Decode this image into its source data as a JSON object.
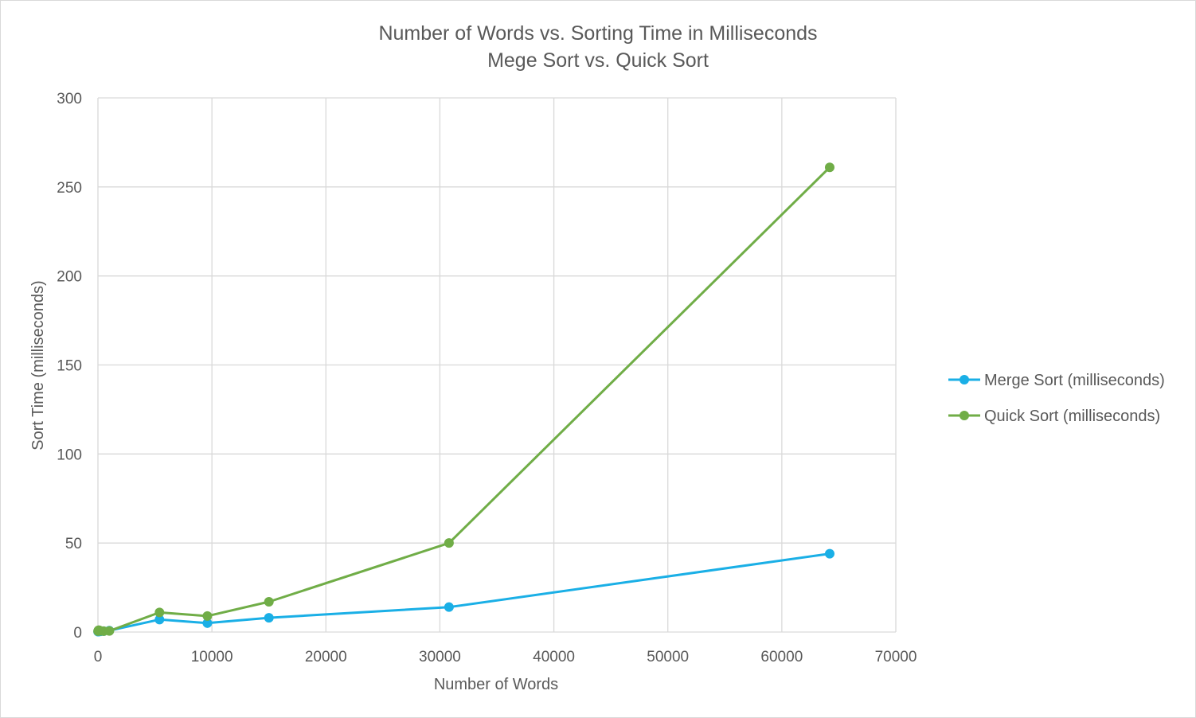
{
  "chart_data": {
    "type": "line",
    "title": "Number of Words vs. Sorting Time in Milliseconds",
    "subtitle": "Mege Sort vs. Quick Sort",
    "xlabel": "Number of Words",
    "ylabel": "Sort Time (milliseconds)",
    "xlim": [
      0,
      70000
    ],
    "ylim": [
      0,
      300
    ],
    "x_ticks": [
      0,
      10000,
      20000,
      30000,
      40000,
      50000,
      60000,
      70000
    ],
    "y_ticks": [
      0,
      50,
      100,
      150,
      200,
      250,
      300
    ],
    "grid": true,
    "legend_position": "right",
    "series": [
      {
        "name": "Merge Sort (milliseconds)",
        "color": "#1aafe6",
        "x": [
          10,
          50,
          100,
          250,
          500,
          1000,
          5400,
          9600,
          15000,
          30800,
          64200
        ],
        "y": [
          0.2,
          0.3,
          0.3,
          0.4,
          0.5,
          0.8,
          7,
          5,
          8,
          14,
          44
        ]
      },
      {
        "name": "Quick Sort (milliseconds)",
        "color": "#70ad47",
        "x": [
          10,
          50,
          100,
          250,
          500,
          1000,
          5400,
          9600,
          15000,
          30800,
          64200
        ],
        "y": [
          0.5,
          1.0,
          1.0,
          0.6,
          0.5,
          0.6,
          11,
          9,
          17,
          50,
          261
        ]
      }
    ]
  }
}
